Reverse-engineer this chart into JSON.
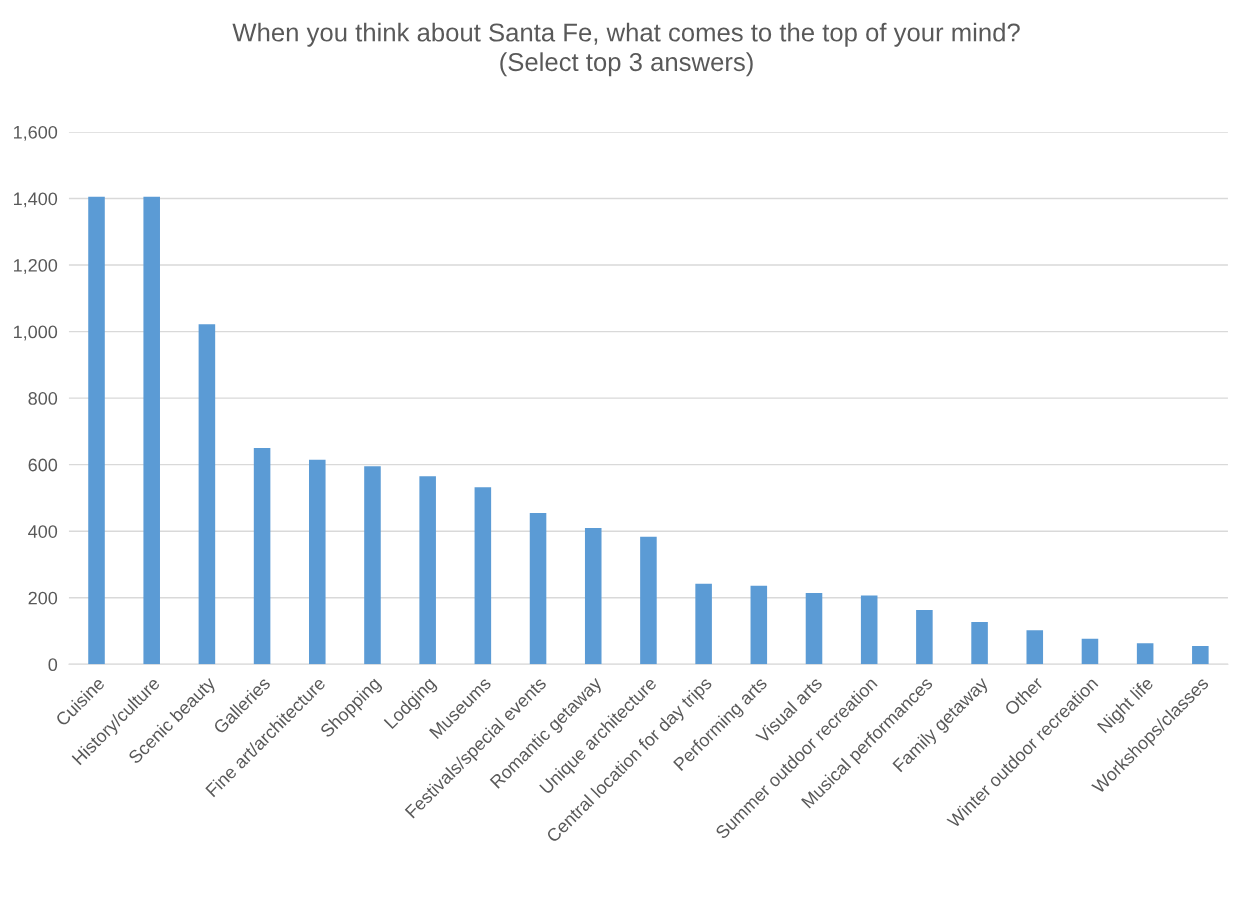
{
  "chart_data": {
    "type": "bar",
    "title": "When you think about Santa Fe, what comes to the top of your mind?\n(Select top 3 answers)",
    "categories": [
      "Cuisine",
      "History/culture",
      "Scenic beauty",
      "Galleries",
      "Fine art/architecture",
      "Shopping",
      "Lodging",
      "Museums",
      "Festivals/special events",
      "Romantic getaway",
      "Unique architecture",
      "Central location for day trips",
      "Performing arts",
      "Visual arts",
      "Summer outdoor recreation",
      "Musical performances",
      "Family getaway",
      "Other",
      "Winter outdoor recreation",
      "Night life",
      "Workshops/classes"
    ],
    "values": [
      1405,
      1405,
      1022,
      650,
      615,
      595,
      565,
      532,
      455,
      410,
      383,
      242,
      236,
      214,
      207,
      163,
      127,
      102,
      77,
      63,
      55
    ],
    "color": "#5b9bd5",
    "ylim": [
      0,
      1600
    ],
    "yticks": [
      0,
      200,
      400,
      600,
      800,
      {
        "value": 1000,
        "label": "1,000"
      },
      {
        "value": 1200,
        "label": "1,200"
      },
      {
        "value": 1400,
        "label": "1,400"
      },
      {
        "value": 1600,
        "label": "1,600"
      }
    ],
    "grid": "y"
  }
}
